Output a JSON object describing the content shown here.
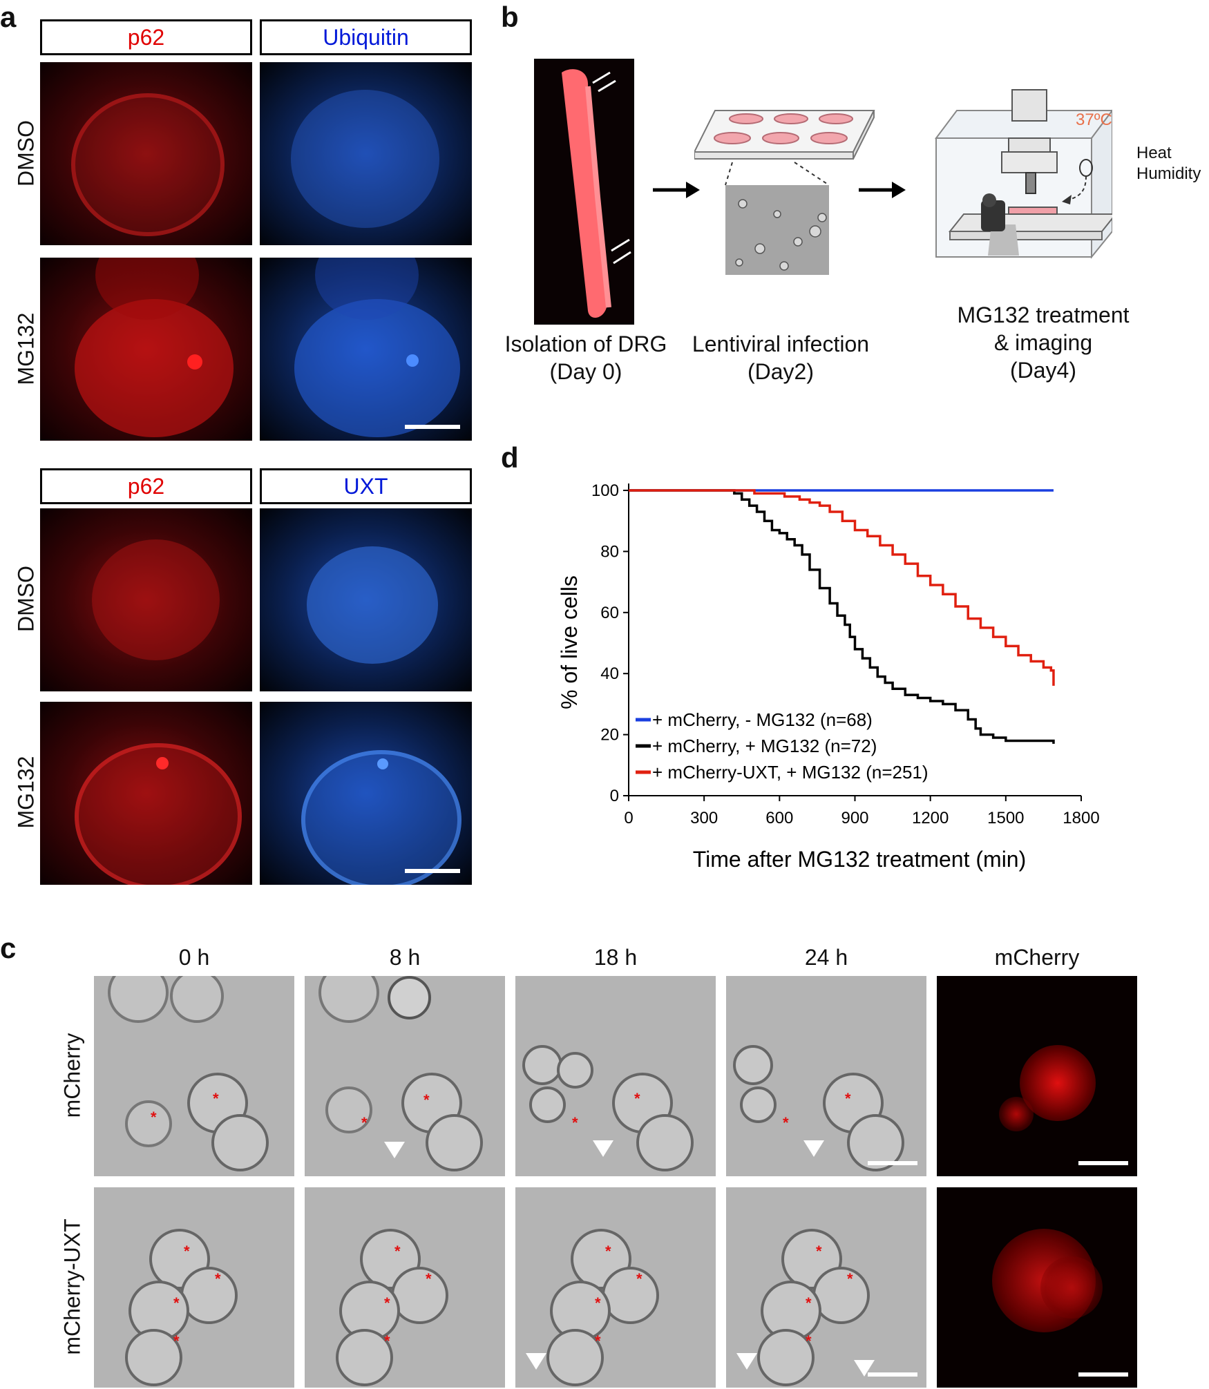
{
  "panel_labels": {
    "a": "a",
    "b": "b",
    "c": "c",
    "d": "d"
  },
  "panel_a": {
    "top": {
      "channel_left": "p62",
      "channel_right": "Ubiquitin",
      "row1": "DMSO",
      "row2": "MG132"
    },
    "bottom": {
      "channel_left": "p62",
      "channel_right": "UXT",
      "row1": "DMSO",
      "row2": "MG132"
    },
    "colors": {
      "red": "#e00000",
      "blue": "#0018d8"
    }
  },
  "panel_b": {
    "step1": {
      "line1": "Isolation of DRG",
      "line2": "(Day 0)"
    },
    "step2": {
      "line1": "Lentiviral infection",
      "line2": "(Day2)"
    },
    "step3": {
      "line1": "MG132 treatment",
      "line2": "& imaging",
      "line3": "(Day4)"
    },
    "temp": "37ºC",
    "heat": "Heat",
    "humidity": "Humidity"
  },
  "panel_c": {
    "times": [
      "0 h",
      "8 h",
      "18 h",
      "24 h"
    ],
    "fluor_label": "mCherry",
    "rows": [
      "mCherry",
      "mCherry-UXT"
    ]
  },
  "chart_data": {
    "type": "line",
    "xlabel": "Time after MG132 treatment (min)",
    "ylabel": "% of live cells",
    "xlim": [
      0,
      1800
    ],
    "ylim": [
      0,
      100
    ],
    "xticks": [
      "0",
      "300",
      "600",
      "900",
      "1200",
      "1500",
      "1800"
    ],
    "yticks": [
      "0",
      "20",
      "40",
      "60",
      "80",
      "100"
    ],
    "legend_position": "bottom-left",
    "series": [
      {
        "name": "+ mCherry, - MG132 (n=68)",
        "color": "#1a3fe0",
        "x": [
          0,
          1690
        ],
        "y": [
          100,
          100
        ]
      },
      {
        "name": "+ mCherry, + MG132 (n=72)",
        "color": "#000000",
        "x": [
          0,
          400,
          420,
          450,
          480,
          510,
          540,
          570,
          600,
          630,
          660,
          690,
          720,
          760,
          800,
          830,
          860,
          880,
          900,
          930,
          960,
          990,
          1020,
          1050,
          1100,
          1150,
          1200,
          1250,
          1300,
          1350,
          1380,
          1400,
          1450,
          1500,
          1550,
          1600,
          1650,
          1690
        ],
        "y": [
          100,
          100,
          99,
          97,
          95,
          93,
          90,
          87,
          86,
          84,
          82,
          79,
          74,
          68,
          63,
          59,
          56,
          52,
          48,
          45,
          42,
          39,
          37,
          35,
          33,
          32,
          31,
          30,
          28,
          25,
          22,
          20,
          19,
          18,
          18,
          18,
          18,
          17
        ]
      },
      {
        "name": "+ mCherry-UXT, + MG132 (n=251)",
        "color": "#e02010",
        "x": [
          0,
          400,
          450,
          500,
          560,
          620,
          680,
          720,
          760,
          800,
          850,
          900,
          950,
          1000,
          1050,
          1100,
          1150,
          1200,
          1250,
          1300,
          1350,
          1400,
          1450,
          1500,
          1550,
          1600,
          1650,
          1680,
          1690
        ],
        "y": [
          100,
          100,
          100,
          99,
          99,
          98,
          97,
          96,
          95,
          93,
          90,
          87,
          85,
          82,
          79,
          76,
          72,
          69,
          66,
          62,
          58,
          55,
          52,
          49,
          46,
          44,
          42,
          41,
          36
        ]
      }
    ]
  }
}
